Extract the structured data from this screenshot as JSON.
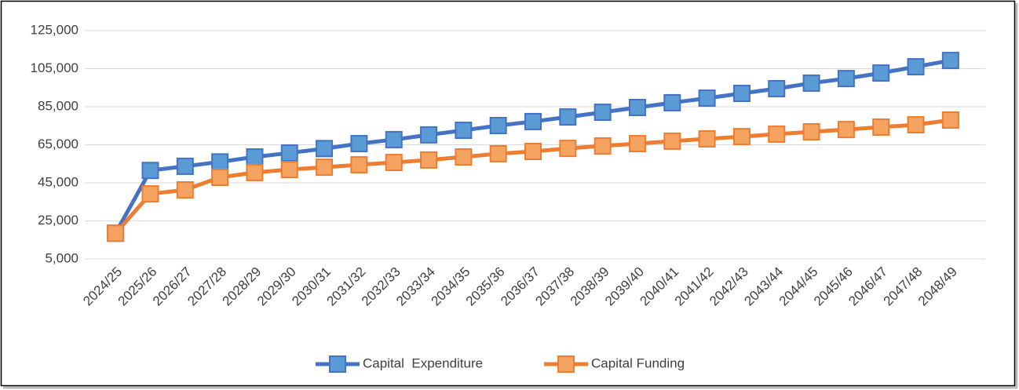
{
  "chart_data": {
    "type": "line",
    "categories": [
      "2024/25",
      "2025/26",
      "2026/27",
      "2027/28",
      "2028/29",
      "2029/30",
      "2030/31",
      "2031/32",
      "2032/33",
      "2033/34",
      "2034/35",
      "2035/36",
      "2036/37",
      "2037/38",
      "2038/39",
      "2039/40",
      "2040/41",
      "2041/42",
      "2042/43",
      "2043/44",
      "2044/45",
      "2045/46",
      "2046/47",
      "2047/48",
      "2048/49"
    ],
    "series": [
      {
        "name": "Capital  Expenditure",
        "color": "#4472c4",
        "marker_color": "#5b9bd5",
        "values": [
          18500,
          51500,
          53700,
          56000,
          58600,
          60700,
          63000,
          65600,
          67700,
          70200,
          72600,
          75100,
          77200,
          79600,
          82100,
          84600,
          87100,
          89500,
          92000,
          94500,
          97400,
          99800,
          102700,
          106000,
          109300
        ]
      },
      {
        "name": "Capital Funding",
        "color": "#ed7d31",
        "marker_color": "#f4a460",
        "values": [
          18500,
          39200,
          41300,
          47900,
          50400,
          52000,
          53200,
          54500,
          55700,
          57000,
          58600,
          60300,
          61500,
          63100,
          64400,
          65600,
          66900,
          68100,
          69300,
          70600,
          71800,
          73000,
          74300,
          75500,
          78000
        ]
      }
    ],
    "ylim": [
      5000,
      125000
    ],
    "yticks": [
      {
        "value": 5000,
        "label": "5,000"
      },
      {
        "value": 25000,
        "label": "25,000"
      },
      {
        "value": 45000,
        "label": "45,000"
      },
      {
        "value": 65000,
        "label": "65,000"
      },
      {
        "value": 85000,
        "label": "85,000"
      },
      {
        "value": 105000,
        "label": "105,000"
      },
      {
        "value": 125000,
        "label": "125,000"
      }
    ],
    "grid": true,
    "legend": "bottom"
  }
}
